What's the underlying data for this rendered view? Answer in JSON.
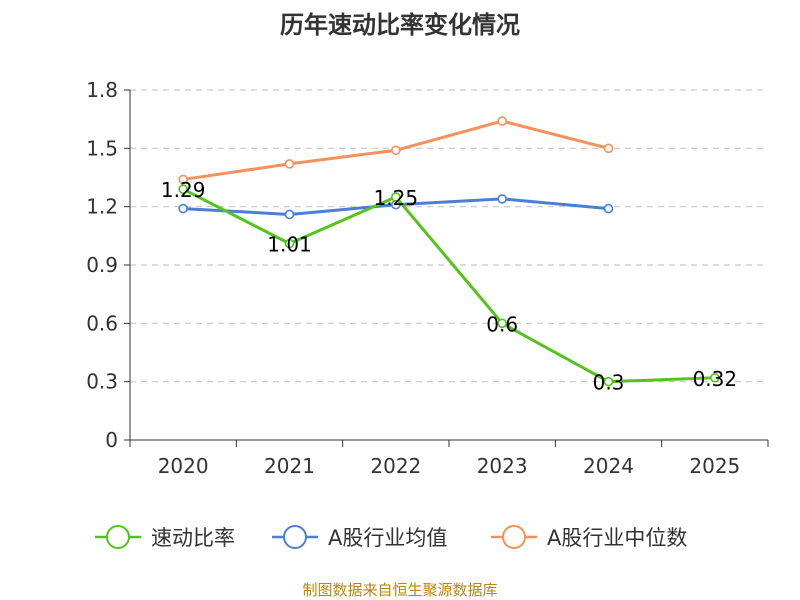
{
  "chart_data": {
    "type": "line",
    "title": "历年速动比率变化情况",
    "categories": [
      "2020",
      "2021",
      "2022",
      "2023",
      "2024",
      "2025"
    ],
    "ylim": [
      0,
      1.8
    ],
    "yticks": [
      "0",
      "0.3",
      "0.6",
      "0.9",
      "1.2",
      "1.5",
      "1.8"
    ],
    "grid": true,
    "legend_position": "bottom",
    "series": [
      {
        "name": "速动比率",
        "color": "#52c41a",
        "values": [
          1.29,
          1.01,
          1.25,
          0.6,
          0.3,
          0.32
        ],
        "labels": [
          "1.29",
          "1.01",
          "1.25",
          "0.6",
          "0.3",
          "0.32"
        ]
      },
      {
        "name": "A股行业均值",
        "color": "#4a7fd6",
        "values": [
          1.19,
          1.16,
          1.21,
          1.24,
          1.19,
          null
        ],
        "labels": []
      },
      {
        "name": "A股行业中位数",
        "color": "#f5915a",
        "values": [
          1.34,
          1.42,
          1.49,
          1.64,
          1.5,
          null
        ],
        "labels": []
      }
    ],
    "source_text": "制图数据来自恒生聚源数据库"
  }
}
